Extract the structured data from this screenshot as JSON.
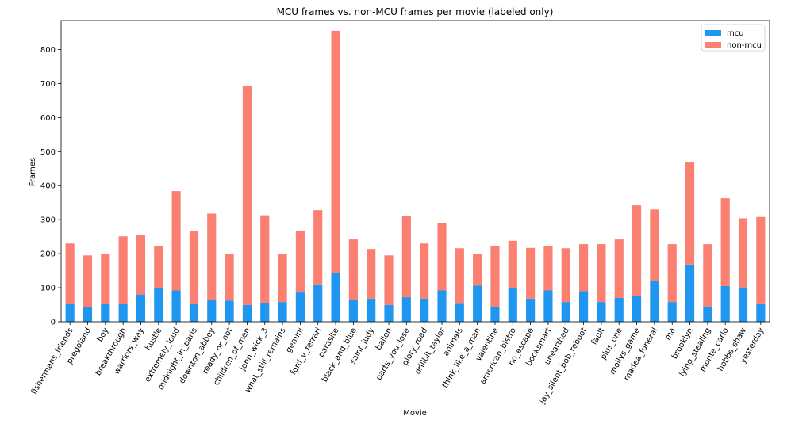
{
  "chart_data": {
    "type": "bar",
    "stacked": true,
    "title": "MCU frames vs. non-MCU frames per movie (labeled only)",
    "xlabel": "Movie",
    "ylabel": "Frames",
    "ylim": [
      0,
      885
    ],
    "yticks": [
      0,
      100,
      200,
      300,
      400,
      500,
      600,
      700,
      800
    ],
    "legend_position": "top-right",
    "categories": [
      "fishermans_friends",
      "pregoland",
      "boy",
      "breakthrough",
      "warriors_way",
      "hustle",
      "extremely_loud",
      "midnight_in_paris",
      "downton_abbey",
      "ready_or_not",
      "children_of_men",
      "john_wick_3",
      "what_still_remains",
      "gemini",
      "ford_v_ferrari",
      "parasite",
      "black_and_blue",
      "saint_judy",
      "ballon",
      "parts_you_lose",
      "glory_road",
      "drillbit_taylor",
      "animals",
      "think_like_a_man",
      "valentine",
      "american_bistro",
      "no_escape",
      "booksmart",
      "unearthed",
      "jay_silent_bob_reboot",
      "fault",
      "plus_one",
      "mollys_game",
      "madea_funeral",
      "ma",
      "brooklyn",
      "lying_stealing",
      "monte_carlo",
      "hobbs_shaw",
      "yesterday"
    ],
    "series": [
      {
        "name": "mcu",
        "color": "#1f96f0",
        "values": [
          53,
          42,
          52,
          53,
          80,
          98,
          92,
          53,
          65,
          62,
          49,
          56,
          58,
          86,
          110,
          143,
          63,
          68,
          49,
          72,
          68,
          92,
          55,
          106,
          44,
          100,
          68,
          92,
          58,
          90,
          58,
          70,
          75,
          120,
          58,
          168,
          45,
          105,
          101,
          54
        ]
      },
      {
        "name": "non-mcu",
        "color": "#fb8072",
        "values": [
          177,
          153,
          146,
          198,
          174,
          125,
          292,
          215,
          253,
          138,
          645,
          257,
          140,
          182,
          218,
          712,
          179,
          146,
          146,
          238,
          162,
          198,
          161,
          94,
          179,
          138,
          149,
          131,
          158,
          138,
          170,
          172,
          267,
          210,
          170,
          300,
          183,
          258,
          203,
          254
        ]
      }
    ]
  }
}
